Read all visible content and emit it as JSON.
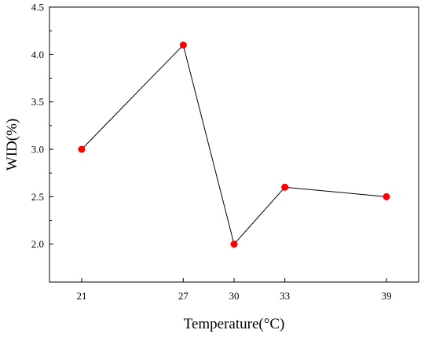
{
  "chart_data": {
    "type": "line",
    "title": "",
    "xlabel": "Temperature(°C)",
    "ylabel": "WID(%)",
    "x": [
      21,
      27,
      30,
      33,
      39
    ],
    "series": [
      {
        "values": [
          3.0,
          4.1,
          2.0,
          2.6,
          2.5
        ]
      }
    ],
    "xticks": [
      21,
      27,
      30,
      33,
      39
    ],
    "xtick_labels": [
      "21",
      "27",
      "30",
      "33",
      "39"
    ],
    "yticks": [
      2.0,
      2.5,
      3.0,
      3.5,
      4.0,
      4.5
    ],
    "ytick_labels": [
      "2.0",
      "2.5",
      "3.0",
      "3.5",
      "4.0",
      "4.5"
    ],
    "xlim": [
      19.1,
      40.9
    ],
    "ylim": [
      1.6,
      4.5
    ],
    "grid": false,
    "legend": "none",
    "colors": {
      "marker": "#ff0000",
      "line": "#000000",
      "axis": "#000000"
    }
  }
}
